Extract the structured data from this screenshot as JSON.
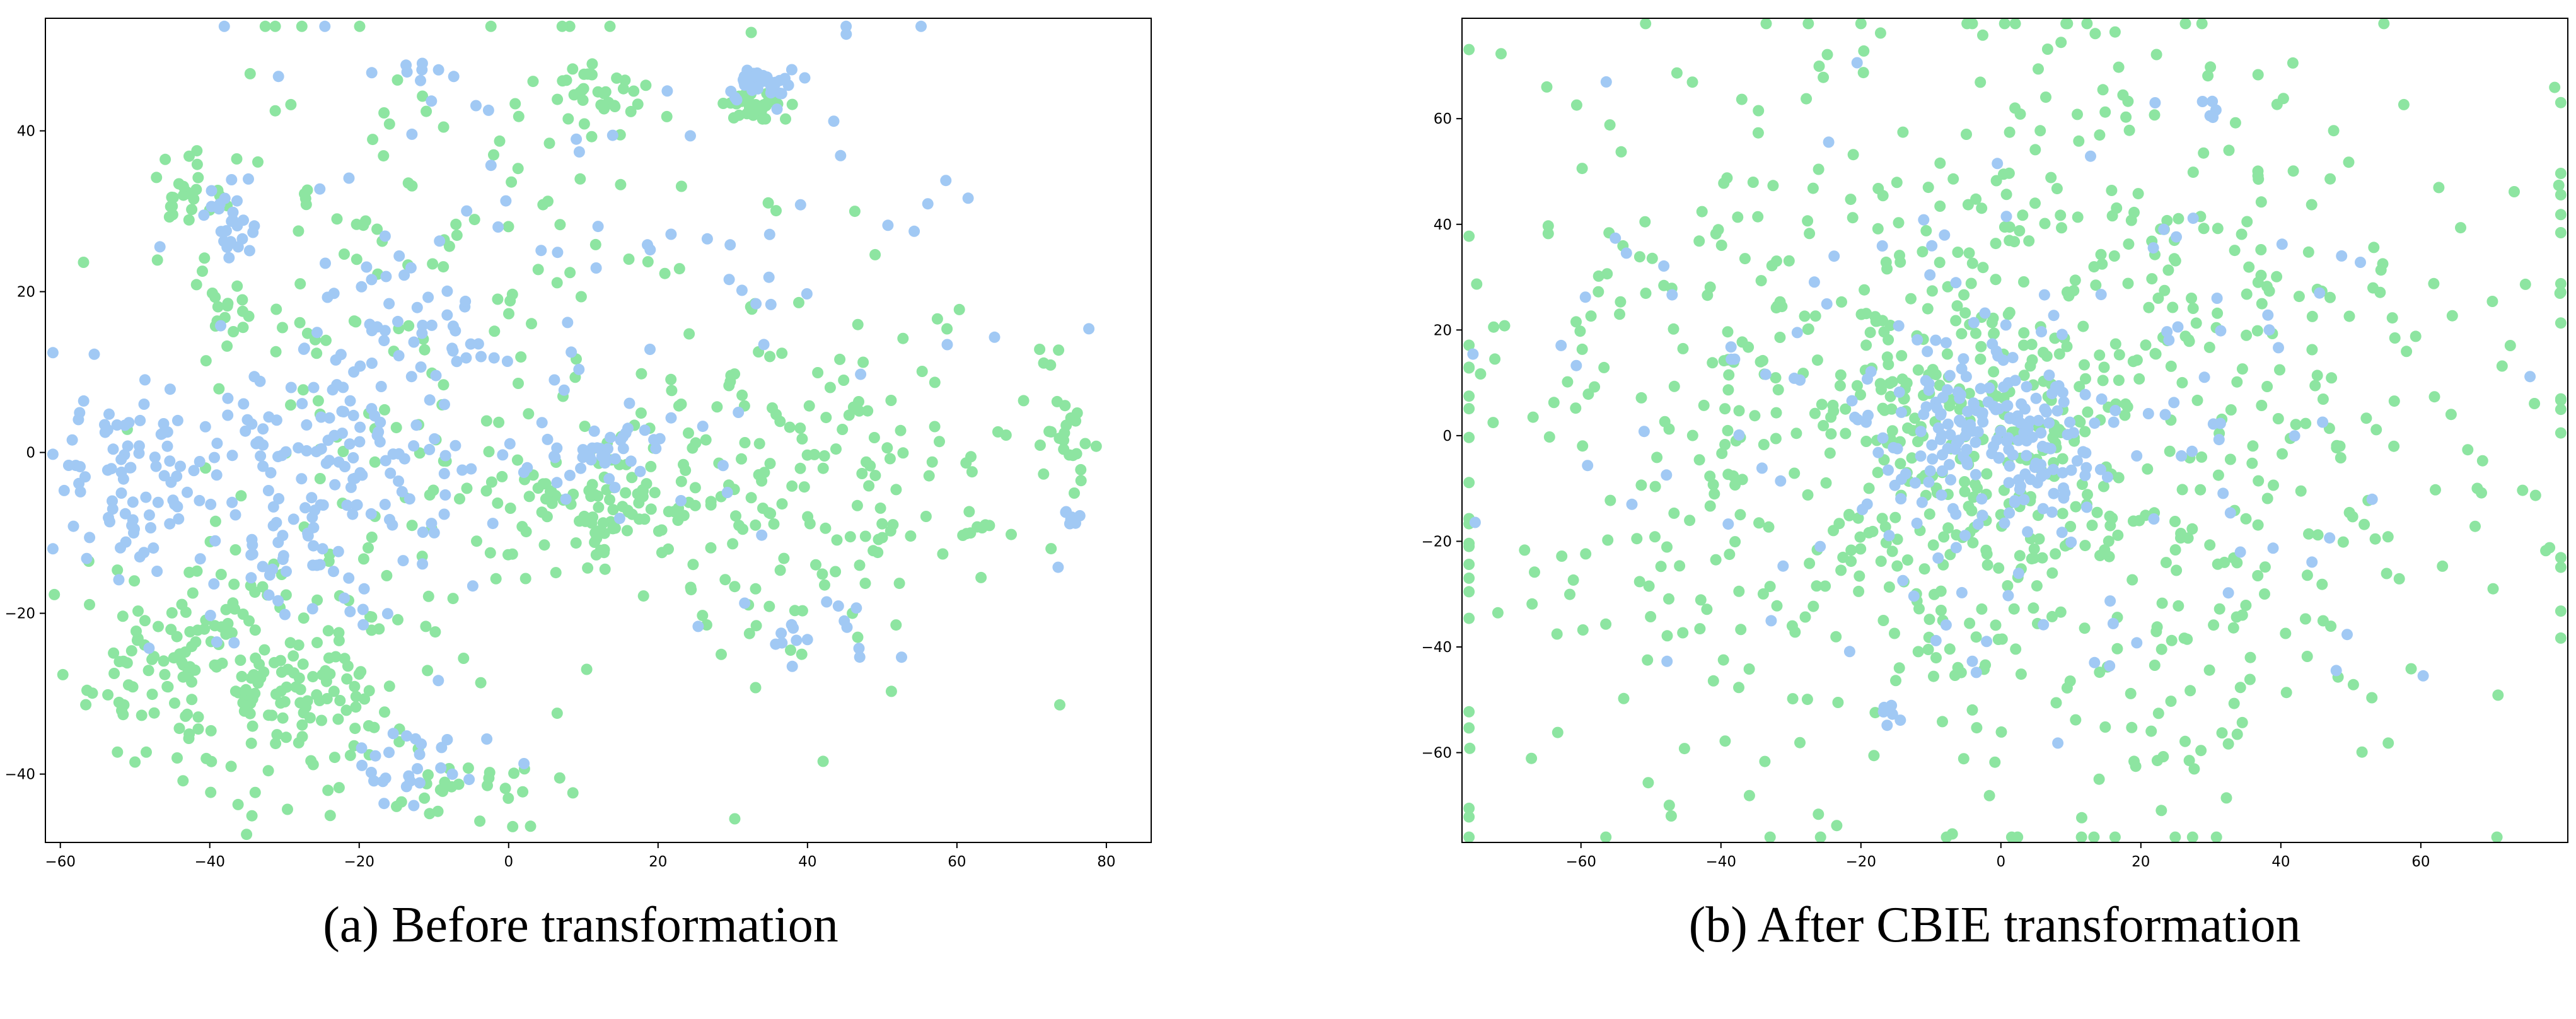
{
  "colors": {
    "series_blue": "#a1c9f4",
    "series_green": "#8de5a1",
    "axes": "#000000",
    "background": "#ffffff"
  },
  "chart_data": [
    {
      "type": "scatter",
      "title": "",
      "caption": "(a) Before transformation",
      "xlabel": "",
      "ylabel": "",
      "xlim": [
        -62,
        86
      ],
      "ylim": [
        -48.5,
        54
      ],
      "xticks": [
        -60,
        -40,
        -20,
        0,
        20,
        40,
        60,
        80
      ],
      "yticks": [
        -40,
        -20,
        0,
        20,
        40
      ],
      "grid": false,
      "legend": "none",
      "series": [
        {
          "color": "#a1c9f4",
          "clusters": [
            {
              "center": [
                -52,
                -2
              ],
              "spread": [
                4,
                5
              ],
              "n": 70
            },
            {
              "center": [
                -38,
                28
              ],
              "spread": [
                2,
                3
              ],
              "n": 25
            },
            {
              "center": [
                -28,
                -5
              ],
              "spread": [
                9,
                9
              ],
              "n": 140
            },
            {
              "center": [
                -12,
                10
              ],
              "spread": [
                8,
                9
              ],
              "n": 70
            },
            {
              "center": [
                13,
                0
              ],
              "spread": [
                6,
                2
              ],
              "n": 35
            },
            {
              "center": [
                34,
                46
              ],
              "spread": [
                2,
                1
              ],
              "n": 40
            },
            {
              "center": [
                -12,
                47
              ],
              "spread": [
                2,
                1
              ],
              "n": 8
            },
            {
              "center": [
                -15,
                -38
              ],
              "spread": [
                6,
                3
              ],
              "n": 28
            },
            {
              "center": [
                40,
                -22
              ],
              "spread": [
                6,
                3
              ],
              "n": 18
            },
            {
              "center": [
                75,
                -9
              ],
              "spread": [
                0.8,
                1
              ],
              "n": 8
            },
            {
              "center": [
                10,
                20
              ],
              "spread": [
                30,
                20
              ],
              "n": 90
            }
          ]
        },
        {
          "color": "#8de5a1",
          "clusters": [
            {
              "center": [
                -43,
                32
              ],
              "spread": [
                3,
                2
              ],
              "n": 25
            },
            {
              "center": [
                -45,
                -27
              ],
              "spread": [
                7,
                5
              ],
              "n": 90
            },
            {
              "center": [
                -28,
                -28
              ],
              "spread": [
                8,
                8
              ],
              "n": 150
            },
            {
              "center": [
                12,
                -7
              ],
              "spread": [
                7,
                3
              ],
              "n": 70
            },
            {
              "center": [
                33,
                43
              ],
              "spread": [
                2,
                1
              ],
              "n": 30
            },
            {
              "center": [
                12,
                45
              ],
              "spread": [
                4,
                2
              ],
              "n": 30
            },
            {
              "center": [
                -3,
                -42
              ],
              "spread": [
                6,
                2
              ],
              "n": 25
            },
            {
              "center": [
                75,
                0
              ],
              "spread": [
                2,
                3
              ],
              "n": 20
            },
            {
              "center": [
                63,
                -10
              ],
              "spread": [
                1,
                1
              ],
              "n": 6
            },
            {
              "center": [
                73,
                12
              ],
              "spread": [
                1,
                1.5
              ],
              "n": 4
            },
            {
              "center": [
                -38,
                17
              ],
              "spread": [
                2,
                3
              ],
              "n": 12
            },
            {
              "center": [
                40,
                -5
              ],
              "spread": [
                14,
                12
              ],
              "n": 170
            },
            {
              "center": [
                -10,
                15
              ],
              "spread": [
                22,
                20
              ],
              "n": 200
            }
          ]
        }
      ]
    },
    {
      "type": "scatter",
      "title": "",
      "caption": "(b) After CBIE transformation",
      "xlabel": "",
      "ylabel": "",
      "xlim": [
        -77,
        81
      ],
      "ylim": [
        -77,
        79
      ],
      "xticks": [
        -60,
        -40,
        -20,
        0,
        20,
        40,
        60
      ],
      "yticks": [
        -60,
        -40,
        -20,
        0,
        20,
        40,
        60
      ],
      "grid": false,
      "legend": "none",
      "series": [
        {
          "color": "#a1c9f4",
          "clusters": [
            {
              "center": [
                0,
                0
              ],
              "spread": [
                9,
                9
              ],
              "n": 170
            },
            {
              "center": [
                0,
                0
              ],
              "spread": [
                30,
                28
              ],
              "n": 140
            },
            {
              "center": [
                31,
                62
              ],
              "spread": [
                1,
                1
              ],
              "n": 6
            },
            {
              "center": [
                -16,
                -53
              ],
              "spread": [
                1,
                1
              ],
              "n": 6
            }
          ]
        },
        {
          "color": "#8de5a1",
          "clusters": [
            {
              "center": [
                0,
                0
              ],
              "spread": [
                38,
                36
              ],
              "n": 900
            },
            {
              "center": [
                0,
                0
              ],
              "spread": [
                9,
                9
              ],
              "n": 80
            }
          ]
        }
      ]
    }
  ]
}
